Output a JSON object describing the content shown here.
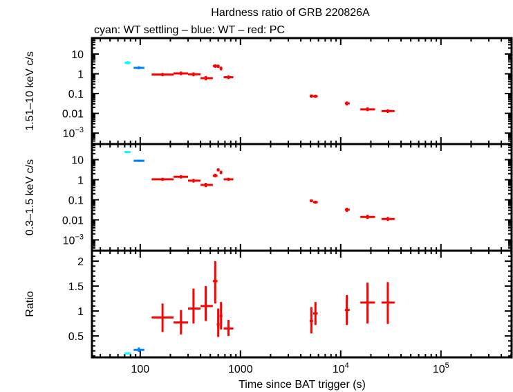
{
  "chart_data": {
    "type": "scatter",
    "title": "Hardness ratio of GRB 220826A",
    "subtitle": "cyan: WT settling – blue: WT – red: PC",
    "xlabel": "Time since BAT trigger (s)",
    "xscale": "log",
    "xlim": [
      33,
      507000
    ],
    "x_ticks": [
      {
        "value": 100,
        "label": "100"
      },
      {
        "value": 1000,
        "label": "1000"
      },
      {
        "value": 10000,
        "label": "10",
        "sup": "4"
      },
      {
        "value": 100000,
        "label": "10",
        "sup": "5"
      }
    ],
    "colors": {
      "wt_settling": "#00ffff",
      "wt": "#0080ff",
      "pc": "#ff0000",
      "axis": "#000000"
    },
    "panels": [
      {
        "id": "hard",
        "ylabel": "1.51–10 keV c/s",
        "yscale": "log",
        "ylim": [
          0.00028,
          64
        ],
        "y_ticks": [
          {
            "value": 10,
            "label": "10"
          },
          {
            "value": 1,
            "label": "1"
          },
          {
            "value": 0.1,
            "label": "0.1"
          },
          {
            "value": 0.01,
            "label": "0.01"
          },
          {
            "value": 0.001,
            "label": "10",
            "sup": "−3"
          }
        ],
        "series": [
          {
            "name": "WT settling",
            "color_key": "wt_settling",
            "points": [
              {
                "x": 75,
                "xlo": 70,
                "xhi": 80,
                "y": 3.6,
                "ylo": 3.0,
                "yhi": 4.4
              }
            ]
          },
          {
            "name": "WT",
            "color_key": "wt",
            "points": [
              {
                "x": 97,
                "xlo": 86,
                "xhi": 110,
                "y": 2.0,
                "ylo": 1.7,
                "yhi": 2.4
              }
            ]
          },
          {
            "name": "PC",
            "color_key": "pc",
            "points": [
              {
                "x": 167,
                "xlo": 130,
                "xhi": 215,
                "y": 0.92,
                "ylo": 0.75,
                "yhi": 1.12
              },
              {
                "x": 255,
                "xlo": 215,
                "xhi": 300,
                "y": 1.05,
                "ylo": 0.85,
                "yhi": 1.3
              },
              {
                "x": 340,
                "xlo": 300,
                "xhi": 400,
                "y": 0.95,
                "ylo": 0.75,
                "yhi": 1.18
              },
              {
                "x": 450,
                "xlo": 400,
                "xhi": 530,
                "y": 0.6,
                "ylo": 0.47,
                "yhi": 0.77
              },
              {
                "x": 560,
                "xlo": 530,
                "xhi": 590,
                "y": 2.5,
                "ylo": 2.0,
                "yhi": 3.0
              },
              {
                "x": 600,
                "xlo": 580,
                "xhi": 620,
                "y": 2.4,
                "ylo": 2.0,
                "yhi": 2.9
              },
              {
                "x": 640,
                "xlo": 620,
                "xhi": 660,
                "y": 1.9,
                "ylo": 1.5,
                "yhi": 2.3
              },
              {
                "x": 760,
                "xlo": 680,
                "xhi": 850,
                "y": 0.67,
                "ylo": 0.54,
                "yhi": 0.83
              },
              {
                "x": 5100,
                "xlo": 4900,
                "xhi": 5300,
                "y": 0.075,
                "ylo": 0.062,
                "yhi": 0.09
              },
              {
                "x": 5600,
                "xlo": 5300,
                "xhi": 5900,
                "y": 0.073,
                "ylo": 0.061,
                "yhi": 0.088
              },
              {
                "x": 11500,
                "xlo": 11000,
                "xhi": 12300,
                "y": 0.032,
                "ylo": 0.025,
                "yhi": 0.04
              },
              {
                "x": 18500,
                "xlo": 15700,
                "xhi": 22000,
                "y": 0.016,
                "ylo": 0.013,
                "yhi": 0.02
              },
              {
                "x": 29500,
                "xlo": 25500,
                "xhi": 34500,
                "y": 0.013,
                "ylo": 0.0105,
                "yhi": 0.016
              }
            ]
          }
        ]
      },
      {
        "id": "soft",
        "ylabel": "0.3–1.5 keV c/s",
        "yscale": "log",
        "ylim": [
          0.00029,
          60
        ],
        "y_ticks": [
          {
            "value": 10,
            "label": "10"
          },
          {
            "value": 1,
            "label": "1"
          },
          {
            "value": 0.1,
            "label": "0.1"
          },
          {
            "value": 0.01,
            "label": "0.01"
          },
          {
            "value": 0.001,
            "label": "10",
            "sup": "−3"
          }
        ],
        "series": [
          {
            "name": "WT settling",
            "color_key": "wt_settling",
            "points": [
              {
                "x": 75,
                "xlo": 70,
                "xhi": 80,
                "y": 24,
                "ylo": 21,
                "yhi": 27
              }
            ]
          },
          {
            "name": "WT",
            "color_key": "wt",
            "points": [
              {
                "x": 97,
                "xlo": 86,
                "xhi": 110,
                "y": 8.8,
                "ylo": 7.8,
                "yhi": 9.9
              }
            ]
          },
          {
            "name": "PC",
            "color_key": "pc",
            "points": [
              {
                "x": 167,
                "xlo": 130,
                "xhi": 215,
                "y": 1.05,
                "ylo": 0.88,
                "yhi": 1.25
              },
              {
                "x": 255,
                "xlo": 215,
                "xhi": 300,
                "y": 1.4,
                "ylo": 1.15,
                "yhi": 1.7
              },
              {
                "x": 340,
                "xlo": 300,
                "xhi": 400,
                "y": 0.9,
                "ylo": 0.72,
                "yhi": 1.1
              },
              {
                "x": 450,
                "xlo": 400,
                "xhi": 530,
                "y": 0.55,
                "ylo": 0.43,
                "yhi": 0.7
              },
              {
                "x": 560,
                "xlo": 530,
                "xhi": 590,
                "y": 1.6,
                "ylo": 1.3,
                "yhi": 2.0
              },
              {
                "x": 600,
                "xlo": 580,
                "xhi": 620,
                "y": 3.1,
                "ylo": 2.6,
                "yhi": 3.7
              },
              {
                "x": 640,
                "xlo": 620,
                "xhi": 660,
                "y": 2.3,
                "ylo": 1.9,
                "yhi": 2.8
              },
              {
                "x": 760,
                "xlo": 680,
                "xhi": 850,
                "y": 1.05,
                "ylo": 0.88,
                "yhi": 1.25
              },
              {
                "x": 5100,
                "xlo": 4900,
                "xhi": 5300,
                "y": 0.09,
                "ylo": 0.076,
                "yhi": 0.105
              },
              {
                "x": 5600,
                "xlo": 5300,
                "xhi": 5900,
                "y": 0.076,
                "ylo": 0.064,
                "yhi": 0.09
              },
              {
                "x": 11500,
                "xlo": 11000,
                "xhi": 12300,
                "y": 0.032,
                "ylo": 0.025,
                "yhi": 0.04
              },
              {
                "x": 18500,
                "xlo": 15700,
                "xhi": 22000,
                "y": 0.014,
                "ylo": 0.011,
                "yhi": 0.018
              },
              {
                "x": 29500,
                "xlo": 25500,
                "xhi": 34500,
                "y": 0.011,
                "ylo": 0.0088,
                "yhi": 0.014
              }
            ]
          }
        ]
      },
      {
        "id": "ratio",
        "ylabel": "Ratio",
        "yscale": "linear",
        "ylim": [
          0.07,
          2.21
        ],
        "y_ticks": [
          {
            "value": 2,
            "label": "2"
          },
          {
            "value": 1.5,
            "label": "1.5"
          },
          {
            "value": 1,
            "label": "1"
          },
          {
            "value": 0.5,
            "label": "0.5"
          }
        ],
        "series": [
          {
            "name": "WT settling",
            "color_key": "wt_settling",
            "points": [
              {
                "x": 75,
                "xlo": 70,
                "xhi": 80,
                "y": 0.15,
                "ylo": 0.13,
                "yhi": 0.17
              }
            ]
          },
          {
            "name": "WT",
            "color_key": "wt",
            "points": [
              {
                "x": 97,
                "xlo": 86,
                "xhi": 110,
                "y": 0.22,
                "ylo": 0.18,
                "yhi": 0.27
              }
            ]
          },
          {
            "name": "PC",
            "color_key": "pc",
            "points": [
              {
                "x": 167,
                "xlo": 130,
                "xhi": 215,
                "y": 0.87,
                "ylo": 0.58,
                "yhi": 1.15
              },
              {
                "x": 255,
                "xlo": 215,
                "xhi": 300,
                "y": 0.77,
                "ylo": 0.53,
                "yhi": 1.02
              },
              {
                "x": 340,
                "xlo": 300,
                "xhi": 400,
                "y": 1.05,
                "ylo": 0.75,
                "yhi": 1.45
              },
              {
                "x": 450,
                "xlo": 400,
                "xhi": 530,
                "y": 1.1,
                "ylo": 0.8,
                "yhi": 1.5
              },
              {
                "x": 560,
                "xlo": 530,
                "xhi": 590,
                "y": 1.6,
                "ylo": 1.15,
                "yhi": 2.0
              },
              {
                "x": 600,
                "xlo": 580,
                "xhi": 620,
                "y": 0.73,
                "ylo": 0.48,
                "yhi": 1.05
              },
              {
                "x": 640,
                "xlo": 620,
                "xhi": 660,
                "y": 0.9,
                "ylo": 0.63,
                "yhi": 1.18
              },
              {
                "x": 760,
                "xlo": 680,
                "xhi": 850,
                "y": 0.65,
                "ylo": 0.5,
                "yhi": 0.82
              },
              {
                "x": 5100,
                "xlo": 4900,
                "xhi": 5300,
                "y": 0.8,
                "ylo": 0.55,
                "yhi": 1.08
              },
              {
                "x": 5600,
                "xlo": 5300,
                "xhi": 5900,
                "y": 0.95,
                "ylo": 0.72,
                "yhi": 1.18
              },
              {
                "x": 11500,
                "xlo": 11000,
                "xhi": 12300,
                "y": 1.02,
                "ylo": 0.72,
                "yhi": 1.32
              },
              {
                "x": 18500,
                "xlo": 15700,
                "xhi": 22000,
                "y": 1.17,
                "ylo": 0.75,
                "yhi": 1.57
              },
              {
                "x": 29500,
                "xlo": 25500,
                "xhi": 34500,
                "y": 1.17,
                "ylo": 0.74,
                "yhi": 1.58
              }
            ]
          }
        ]
      }
    ]
  }
}
